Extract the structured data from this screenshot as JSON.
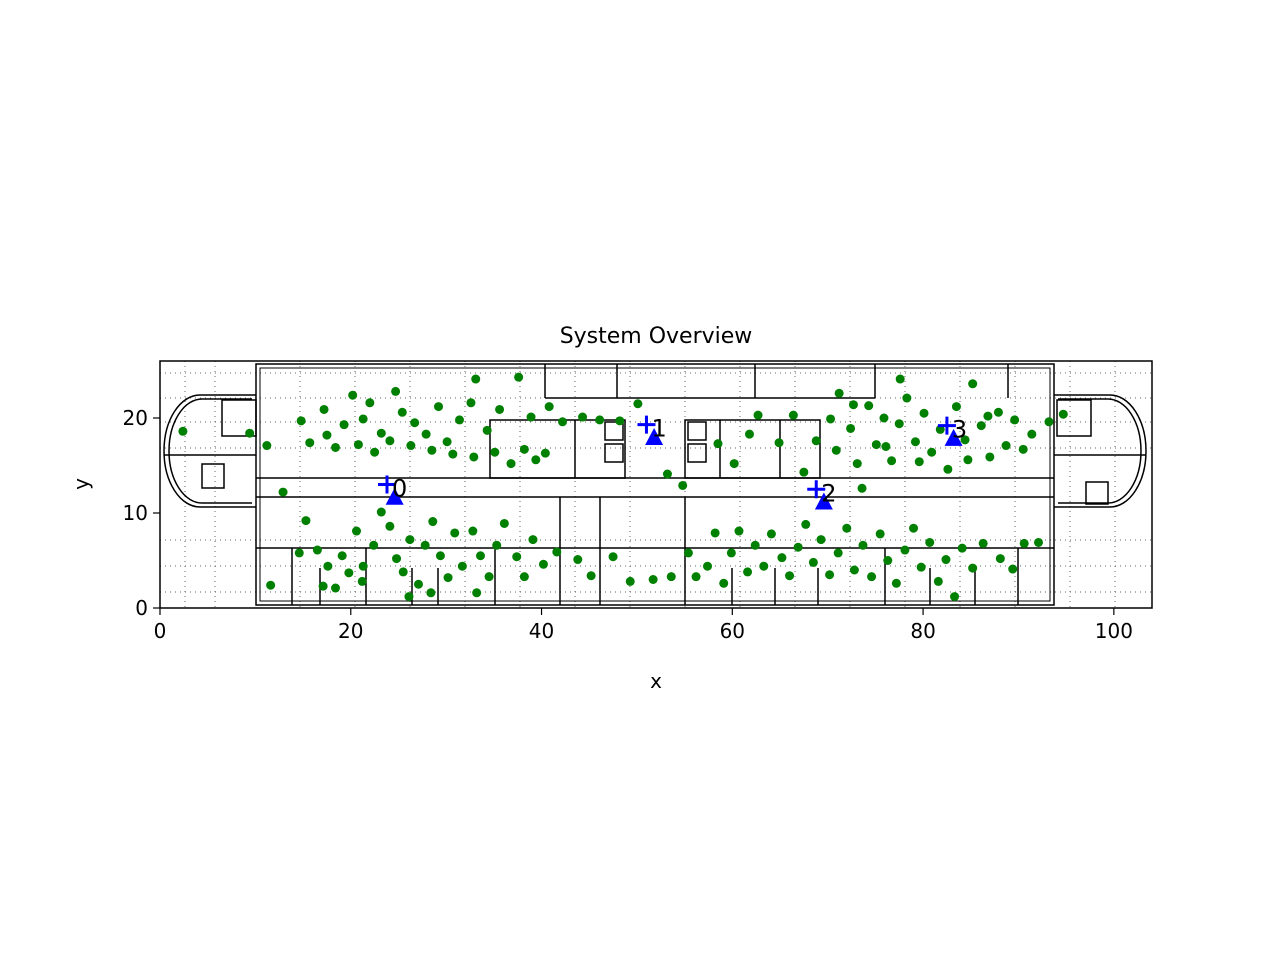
{
  "chart_data": {
    "type": "scatter",
    "title": "System Overview",
    "xlabel": "x",
    "ylabel": "y",
    "xlim": [
      0,
      104
    ],
    "ylim": [
      0,
      26
    ],
    "xticks": [
      0,
      20,
      40,
      60,
      80,
      100
    ],
    "yticks": [
      0,
      10,
      20
    ],
    "grid": false,
    "background": "floor plan",
    "colors": {
      "points": "#008000",
      "anchors": "#0000ff"
    },
    "anchors": [
      {
        "label": "0",
        "plus": [
          23.8,
          13.0
        ],
        "triangle": [
          24.6,
          11.6
        ]
      },
      {
        "label": "1",
        "plus": [
          51.0,
          19.3
        ],
        "triangle": [
          51.8,
          17.9
        ]
      },
      {
        "label": "2",
        "plus": [
          68.8,
          12.5
        ],
        "triangle": [
          69.6,
          11.1
        ]
      },
      {
        "label": "3",
        "plus": [
          82.5,
          19.2
        ],
        "triangle": [
          83.2,
          17.8
        ]
      }
    ],
    "points": [
      [
        2.4,
        18.6
      ],
      [
        9.4,
        18.4
      ],
      [
        11.2,
        17.1
      ],
      [
        12.9,
        12.2
      ],
      [
        11.6,
        2.4
      ],
      [
        14.8,
        19.7
      ],
      [
        17.2,
        20.9
      ],
      [
        17.5,
        18.2
      ],
      [
        19.3,
        19.3
      ],
      [
        20.2,
        22.4
      ],
      [
        21.3,
        19.9
      ],
      [
        22.0,
        21.6
      ],
      [
        23.2,
        18.4
      ],
      [
        24.7,
        22.8
      ],
      [
        25.4,
        20.6
      ],
      [
        26.7,
        19.5
      ],
      [
        27.9,
        18.3
      ],
      [
        29.2,
        21.2
      ],
      [
        30.1,
        17.5
      ],
      [
        31.4,
        19.8
      ],
      [
        32.6,
        21.6
      ],
      [
        33.1,
        24.1
      ],
      [
        34.3,
        18.7
      ],
      [
        35.6,
        20.9
      ],
      [
        36.8,
        15.2
      ],
      [
        37.6,
        24.3
      ],
      [
        38.9,
        20.1
      ],
      [
        39.4,
        15.6
      ],
      [
        40.8,
        21.2
      ],
      [
        42.2,
        19.6
      ],
      [
        44.3,
        20.1
      ],
      [
        46.1,
        19.8
      ],
      [
        48.2,
        19.7
      ],
      [
        50.1,
        21.5
      ],
      [
        15.7,
        17.4
      ],
      [
        18.4,
        16.9
      ],
      [
        20.8,
        17.2
      ],
      [
        22.5,
        16.4
      ],
      [
        24.1,
        17.6
      ],
      [
        26.3,
        17.1
      ],
      [
        28.5,
        16.6
      ],
      [
        30.7,
        16.2
      ],
      [
        32.9,
        15.9
      ],
      [
        35.1,
        16.4
      ],
      [
        38.2,
        16.7
      ],
      [
        40.4,
        16.3
      ],
      [
        14.6,
        5.8
      ],
      [
        15.3,
        9.2
      ],
      [
        16.5,
        6.1
      ],
      [
        17.6,
        4.4
      ],
      [
        18.4,
        2.1
      ],
      [
        19.1,
        5.5
      ],
      [
        19.8,
        3.7
      ],
      [
        20.6,
        8.1
      ],
      [
        21.3,
        4.4
      ],
      [
        22.4,
        6.6
      ],
      [
        23.2,
        10.1
      ],
      [
        24.1,
        8.6
      ],
      [
        24.8,
        5.2
      ],
      [
        25.5,
        3.8
      ],
      [
        26.2,
        7.2
      ],
      [
        27.1,
        2.5
      ],
      [
        27.8,
        6.6
      ],
      [
        28.6,
        9.1
      ],
      [
        29.4,
        5.5
      ],
      [
        30.2,
        3.2
      ],
      [
        30.9,
        7.9
      ],
      [
        31.7,
        4.4
      ],
      [
        32.8,
        8.1
      ],
      [
        33.6,
        5.5
      ],
      [
        34.5,
        3.3
      ],
      [
        35.3,
        6.6
      ],
      [
        36.1,
        8.9
      ],
      [
        37.4,
        5.4
      ],
      [
        38.2,
        3.3
      ],
      [
        39.1,
        7.2
      ],
      [
        40.2,
        4.6
      ],
      [
        41.6,
        5.9
      ],
      [
        43.8,
        5.1
      ],
      [
        45.2,
        3.4
      ],
      [
        47.5,
        5.4
      ],
      [
        49.3,
        2.8
      ],
      [
        51.7,
        3.0
      ],
      [
        53.6,
        3.3
      ],
      [
        26.1,
        1.2
      ],
      [
        28.4,
        1.6
      ],
      [
        17.1,
        2.3
      ],
      [
        21.2,
        2.8
      ],
      [
        33.2,
        1.6
      ],
      [
        55.4,
        5.8
      ],
      [
        56.2,
        3.3
      ],
      [
        57.4,
        4.4
      ],
      [
        58.2,
        7.9
      ],
      [
        59.1,
        2.6
      ],
      [
        59.9,
        5.8
      ],
      [
        60.7,
        8.1
      ],
      [
        61.6,
        3.8
      ],
      [
        62.4,
        6.6
      ],
      [
        63.3,
        4.4
      ],
      [
        64.1,
        7.8
      ],
      [
        65.2,
        5.3
      ],
      [
        66.0,
        3.4
      ],
      [
        66.9,
        6.4
      ],
      [
        67.7,
        8.8
      ],
      [
        68.5,
        4.8
      ],
      [
        69.3,
        7.2
      ],
      [
        70.2,
        3.5
      ],
      [
        71.1,
        5.8
      ],
      [
        72.0,
        8.4
      ],
      [
        72.8,
        4.0
      ],
      [
        73.7,
        6.6
      ],
      [
        74.6,
        3.3
      ],
      [
        75.5,
        7.8
      ],
      [
        76.3,
        5.0
      ],
      [
        77.2,
        2.6
      ],
      [
        78.1,
        6.1
      ],
      [
        79.0,
        8.4
      ],
      [
        79.8,
        4.3
      ],
      [
        80.7,
        6.9
      ],
      [
        81.6,
        2.8
      ],
      [
        82.4,
        5.1
      ],
      [
        83.3,
        1.2
      ],
      [
        84.1,
        6.3
      ],
      [
        85.2,
        4.2
      ],
      [
        86.3,
        6.8
      ],
      [
        88.1,
        5.2
      ],
      [
        89.4,
        4.1
      ],
      [
        90.6,
        6.8
      ],
      [
        92.1,
        6.9
      ],
      [
        53.2,
        14.1
      ],
      [
        54.8,
        12.9
      ],
      [
        58.5,
        17.3
      ],
      [
        60.2,
        15.2
      ],
      [
        61.8,
        18.3
      ],
      [
        62.7,
        20.3
      ],
      [
        64.9,
        17.4
      ],
      [
        66.4,
        20.3
      ],
      [
        67.5,
        14.3
      ],
      [
        68.8,
        17.6
      ],
      [
        70.3,
        19.9
      ],
      [
        71.2,
        22.6
      ],
      [
        72.4,
        18.9
      ],
      [
        73.6,
        12.6
      ],
      [
        74.3,
        21.3
      ],
      [
        75.1,
        17.2
      ],
      [
        75.9,
        20.0
      ],
      [
        76.7,
        15.5
      ],
      [
        77.5,
        19.4
      ],
      [
        78.3,
        22.1
      ],
      [
        79.2,
        17.5
      ],
      [
        80.1,
        20.5
      ],
      [
        80.9,
        16.4
      ],
      [
        81.8,
        18.8
      ],
      [
        82.6,
        14.6
      ],
      [
        83.5,
        21.2
      ],
      [
        84.4,
        17.7
      ],
      [
        85.2,
        23.6
      ],
      [
        86.1,
        19.2
      ],
      [
        87.0,
        15.9
      ],
      [
        87.9,
        20.6
      ],
      [
        88.7,
        17.1
      ],
      [
        89.6,
        19.8
      ],
      [
        90.5,
        16.7
      ],
      [
        91.4,
        18.3
      ],
      [
        93.2,
        19.6
      ],
      [
        94.7,
        20.4
      ],
      [
        70.9,
        16.6
      ],
      [
        73.1,
        15.2
      ],
      [
        76.1,
        17.0
      ],
      [
        79.6,
        15.4
      ],
      [
        84.7,
        15.6
      ],
      [
        86.8,
        20.2
      ],
      [
        72.7,
        21.4
      ],
      [
        77.6,
        24.1
      ]
    ]
  }
}
